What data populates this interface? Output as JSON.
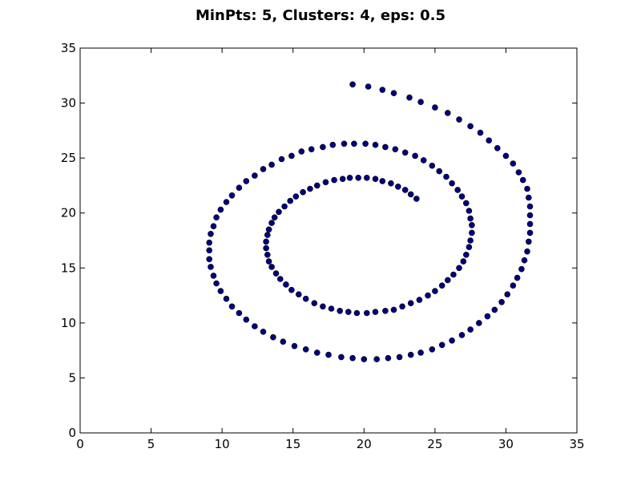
{
  "chart_data": {
    "type": "scatter",
    "title": "MinPts: 5, Clusters: 4, eps: 0.5",
    "xlabel": "",
    "ylabel": "",
    "xlim": [
      0,
      35
    ],
    "ylim": [
      0,
      35
    ],
    "xticks": [
      0,
      5,
      10,
      15,
      20,
      25,
      30,
      35
    ],
    "yticks": [
      0,
      5,
      10,
      15,
      20,
      25,
      30,
      35
    ],
    "grid": false,
    "legend": "none",
    "series": [
      {
        "color": "#00007f",
        "points": [
          [
            19.2,
            31.7
          ],
          [
            20.3,
            31.5
          ],
          [
            21.3,
            31.2
          ],
          [
            22.1,
            30.9
          ],
          [
            23.2,
            30.5
          ],
          [
            24.0,
            30.1
          ],
          [
            25.0,
            29.6
          ],
          [
            25.9,
            29.1
          ],
          [
            26.7,
            28.5
          ],
          [
            27.5,
            27.9
          ],
          [
            28.2,
            27.3
          ],
          [
            28.8,
            26.6
          ],
          [
            29.4,
            25.9
          ],
          [
            30.0,
            25.2
          ],
          [
            30.5,
            24.5
          ],
          [
            30.9,
            23.7
          ],
          [
            31.2,
            23.0
          ],
          [
            31.5,
            22.2
          ],
          [
            31.6,
            21.4
          ],
          [
            31.7,
            20.6
          ],
          [
            31.7,
            19.8
          ],
          [
            31.7,
            19.0
          ],
          [
            31.7,
            18.2
          ],
          [
            31.6,
            17.4
          ],
          [
            31.5,
            16.5
          ],
          [
            31.3,
            15.7
          ],
          [
            31.1,
            14.9
          ],
          [
            30.8,
            14.1
          ],
          [
            30.5,
            13.4
          ],
          [
            30.1,
            12.6
          ],
          [
            29.7,
            11.9
          ],
          [
            29.2,
            11.2
          ],
          [
            28.7,
            10.6
          ],
          [
            28.1,
            10.0
          ],
          [
            27.5,
            9.4
          ],
          [
            26.9,
            8.9
          ],
          [
            26.2,
            8.4
          ],
          [
            25.5,
            8.0
          ],
          [
            24.8,
            7.6
          ],
          [
            24.0,
            7.3
          ],
          [
            23.3,
            7.1
          ],
          [
            22.5,
            6.9
          ],
          [
            21.7,
            6.8
          ],
          [
            20.9,
            6.7
          ],
          [
            20.0,
            6.7
          ],
          [
            19.2,
            6.8
          ],
          [
            18.4,
            6.9
          ],
          [
            17.5,
            7.1
          ],
          [
            16.7,
            7.3
          ],
          [
            15.9,
            7.6
          ],
          [
            15.1,
            7.9
          ],
          [
            14.3,
            8.3
          ],
          [
            13.6,
            8.7
          ],
          [
            12.9,
            9.2
          ],
          [
            12.3,
            9.7
          ],
          [
            11.7,
            10.3
          ],
          [
            11.2,
            10.9
          ],
          [
            10.7,
            11.5
          ],
          [
            10.3,
            12.2
          ],
          [
            9.9,
            12.9
          ],
          [
            9.6,
            13.6
          ],
          [
            9.4,
            14.3
          ],
          [
            9.2,
            15.1
          ],
          [
            9.1,
            15.8
          ],
          [
            9.1,
            16.6
          ],
          [
            9.1,
            17.3
          ],
          [
            9.2,
            18.1
          ],
          [
            9.4,
            18.8
          ],
          [
            9.6,
            19.6
          ],
          [
            9.9,
            20.3
          ],
          [
            10.3,
            21.0
          ],
          [
            10.7,
            21.6
          ],
          [
            11.2,
            22.3
          ],
          [
            11.7,
            22.9
          ],
          [
            12.3,
            23.4
          ],
          [
            12.9,
            24.0
          ],
          [
            13.5,
            24.4
          ],
          [
            14.2,
            24.9
          ],
          [
            14.9,
            25.2
          ],
          [
            15.6,
            25.6
          ],
          [
            16.3,
            25.8
          ],
          [
            17.1,
            26.0
          ],
          [
            17.8,
            26.2
          ],
          [
            18.6,
            26.3
          ],
          [
            19.3,
            26.3
          ],
          [
            20.1,
            26.3
          ],
          [
            20.8,
            26.2
          ],
          [
            21.5,
            26.0
          ],
          [
            22.2,
            25.8
          ],
          [
            22.9,
            25.5
          ],
          [
            23.6,
            25.2
          ],
          [
            24.2,
            24.8
          ],
          [
            24.8,
            24.3
          ],
          [
            25.3,
            23.8
          ],
          [
            25.8,
            23.3
          ],
          [
            26.2,
            22.7
          ],
          [
            26.6,
            22.1
          ],
          [
            26.9,
            21.5
          ],
          [
            27.2,
            20.9
          ],
          [
            27.4,
            20.2
          ],
          [
            27.5,
            19.5
          ],
          [
            27.6,
            18.9
          ],
          [
            27.6,
            18.2
          ],
          [
            27.5,
            17.5
          ],
          [
            27.4,
            16.9
          ],
          [
            27.2,
            16.2
          ],
          [
            27.0,
            15.6
          ],
          [
            26.7,
            15.0
          ],
          [
            26.3,
            14.4
          ],
          [
            25.9,
            13.9
          ],
          [
            25.5,
            13.4
          ],
          [
            25.0,
            12.9
          ],
          [
            24.5,
            12.5
          ],
          [
            23.9,
            12.1
          ],
          [
            23.3,
            11.8
          ],
          [
            22.7,
            11.5
          ],
          [
            22.1,
            11.2
          ],
          [
            21.5,
            11.1
          ],
          [
            20.8,
            11.0
          ],
          [
            20.2,
            10.9
          ],
          [
            19.5,
            10.9
          ],
          [
            18.9,
            11.0
          ],
          [
            18.3,
            11.1
          ],
          [
            17.7,
            11.3
          ],
          [
            17.1,
            11.5
          ],
          [
            16.5,
            11.8
          ],
          [
            15.9,
            12.2
          ],
          [
            15.4,
            12.6
          ],
          [
            14.9,
            13.0
          ],
          [
            14.5,
            13.5
          ],
          [
            14.1,
            14.0
          ],
          [
            13.8,
            14.5
          ],
          [
            13.5,
            15.1
          ],
          [
            13.3,
            15.6
          ],
          [
            13.2,
            16.2
          ],
          [
            13.1,
            16.8
          ],
          [
            13.1,
            17.4
          ],
          [
            13.2,
            18.0
          ],
          [
            13.3,
            18.5
          ],
          [
            13.5,
            19.1
          ],
          [
            13.7,
            19.6
          ],
          [
            14.0,
            20.1
          ],
          [
            14.4,
            20.6
          ],
          [
            14.8,
            21.1
          ],
          [
            15.2,
            21.5
          ],
          [
            15.7,
            21.9
          ],
          [
            16.2,
            22.2
          ],
          [
            16.7,
            22.5
          ],
          [
            17.3,
            22.8
          ],
          [
            17.9,
            23.0
          ],
          [
            18.5,
            23.1
          ],
          [
            19.0,
            23.2
          ],
          [
            19.6,
            23.2
          ],
          [
            20.2,
            23.2
          ],
          [
            20.8,
            23.1
          ],
          [
            21.3,
            22.9
          ],
          [
            21.9,
            22.7
          ],
          [
            22.4,
            22.4
          ],
          [
            22.9,
            22.1
          ],
          [
            23.3,
            21.7
          ],
          [
            23.7,
            21.3
          ]
        ]
      }
    ]
  }
}
